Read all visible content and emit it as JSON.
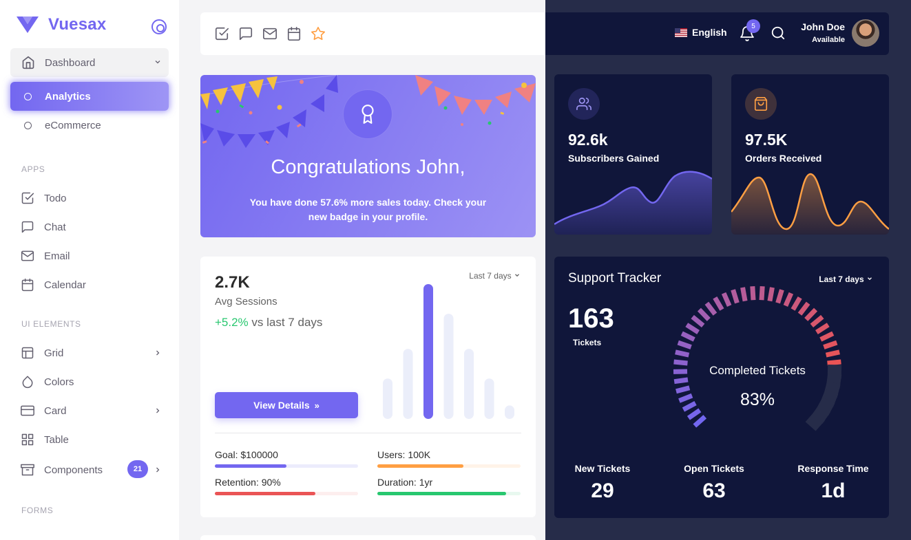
{
  "brand": {
    "name": "Vuesax"
  },
  "sidebar": {
    "dashboard": {
      "label": "Dashboard",
      "icon": "home-icon"
    },
    "sub_items": [
      {
        "label": "Analytics",
        "active": true
      },
      {
        "label": "eCommerce",
        "active": false
      }
    ],
    "sections": [
      {
        "title": "APPS"
      },
      {
        "title": "UI ELEMENTS"
      },
      {
        "title": "FORMS"
      }
    ],
    "apps": [
      {
        "label": "Todo",
        "icon": "check-square-icon"
      },
      {
        "label": "Chat",
        "icon": "message-square-icon"
      },
      {
        "label": "Email",
        "icon": "mail-icon"
      },
      {
        "label": "Calendar",
        "icon": "calendar-icon"
      }
    ],
    "ui_elements": [
      {
        "label": "Grid",
        "icon": "layout-icon",
        "has_children": true
      },
      {
        "label": "Colors",
        "icon": "droplet-icon",
        "has_children": false
      },
      {
        "label": "Card",
        "icon": "credit-card-icon",
        "has_children": true
      },
      {
        "label": "Table",
        "icon": "grid-icon",
        "has_children": false
      },
      {
        "label": "Components",
        "icon": "archive-icon",
        "has_children": true,
        "badge": "21"
      }
    ]
  },
  "topbar": {
    "shortcuts": [
      "check-square-icon",
      "message-square-icon",
      "mail-icon",
      "calendar-icon",
      "star-icon"
    ],
    "language": "English",
    "notifications_count": "5",
    "user": {
      "name": "John Doe",
      "status": "Available"
    }
  },
  "congrats": {
    "title": "Congratulations John,",
    "text_before": "You have done ",
    "highlight": "57.6%",
    "text_after": " more sales today. Check your new badge in your profile."
  },
  "sessions": {
    "value": "2.7K",
    "label": "Avg Sessions",
    "change": "+5.2%",
    "change_suffix": " vs last 7 days",
    "range": "Last 7 days",
    "button": "View Details",
    "bars": [
      30,
      52,
      100,
      78,
      52,
      30,
      10
    ],
    "highlight_bar_index": 2,
    "metrics": [
      {
        "label": "Goal: $100000",
        "progress": 0.5,
        "color": "#7367f0",
        "track": "#ececfc"
      },
      {
        "label": "Users: 100K",
        "progress": 0.6,
        "color": "#ff9f43",
        "track": "#fff3e8"
      },
      {
        "label": "Retention: 90%",
        "progress": 0.7,
        "color": "#ea5455",
        "track": "#fdeeee"
      },
      {
        "label": "Duration: 1yr",
        "progress": 0.9,
        "color": "#28c76f",
        "track": "#e8f8ef"
      }
    ]
  },
  "stats": [
    {
      "value": "92.6k",
      "label": "Subscribers Gained",
      "icon": "users-icon",
      "color": "#7367f0"
    },
    {
      "value": "97.5K",
      "label": "Orders Received",
      "icon": "package-icon",
      "color": "#ff9f43"
    }
  ],
  "tracker": {
    "title": "Support Tracker",
    "range": "Last 7 days",
    "count": "163",
    "count_label": "Tickets",
    "gauge_label": "Completed Tickets",
    "gauge_value": "83%",
    "gauge_fraction": 0.83,
    "stats": [
      {
        "label": "New Tickets",
        "value": "29"
      },
      {
        "label": "Open Tickets",
        "value": "63"
      },
      {
        "label": "Response Time",
        "value": "1d"
      }
    ]
  },
  "colors": {
    "primary": "#7367f0",
    "dark_card": "#10163a",
    "dark_bg": "#262c49",
    "success": "#28c76f",
    "warning": "#ff9f43",
    "danger": "#ea5455"
  }
}
